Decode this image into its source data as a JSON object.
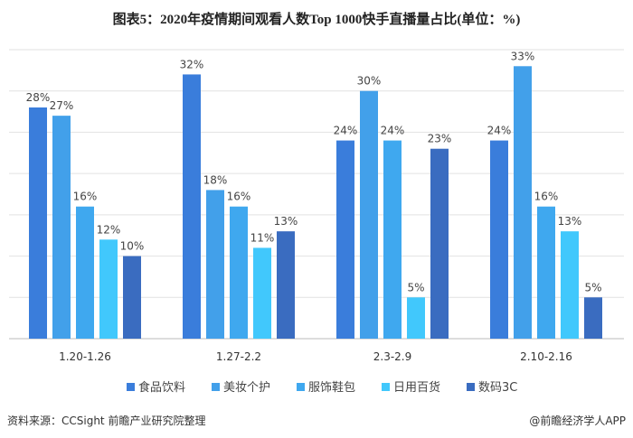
{
  "chart_data": {
    "type": "bar",
    "title": "图表5：2020年疫情期间观看人数Top 1000快手直播量占比(单位：%)",
    "categories": [
      "1.20-1.26",
      "1.27-2.2",
      "2.3-2.9",
      "2.10-2.16"
    ],
    "series": [
      {
        "name": "食品饮料",
        "values": [
          28,
          32,
          24,
          24
        ],
        "color": "#3a7ddb"
      },
      {
        "name": "美妆个护",
        "values": [
          27,
          18,
          30,
          33
        ],
        "color": "#42a0ea"
      },
      {
        "name": "服饰鞋包",
        "values": [
          16,
          16,
          24,
          16
        ],
        "color": "#3fa8ef"
      },
      {
        "name": "日用百货",
        "values": [
          12,
          11,
          5,
          13
        ],
        "color": "#41c8fc"
      },
      {
        "name": "数码3C",
        "values": [
          10,
          13,
          23,
          5
        ],
        "color": "#3a6cc0"
      }
    ],
    "value_suffix": "%",
    "ylim": [
      0,
      35
    ],
    "grid": true,
    "legend": "bottom"
  },
  "footer": {
    "source": "资料来源：CCSight 前瞻产业研究院整理",
    "brand": "@前瞻经济学人APP"
  }
}
